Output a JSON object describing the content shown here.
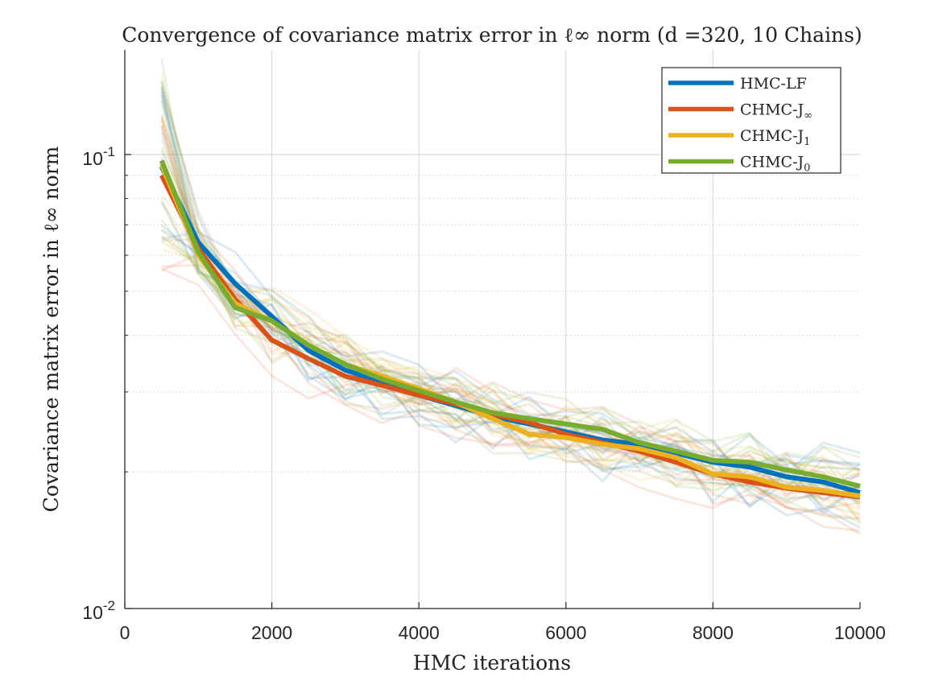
{
  "chart_data": {
    "type": "line",
    "title": "Convergence of covariance matrix error in ℓ∞ norm (d =320, 10 Chains)",
    "xlabel": "HMC iterations",
    "ylabel": "Covariance matrix error in ℓ∞ norm",
    "xlim": [
      0,
      10000
    ],
    "ylim": [
      0.01,
      0.17
    ],
    "yscale": "log",
    "grid": true,
    "legend_position": "top-right",
    "x_ticks": [
      0,
      2000,
      4000,
      6000,
      8000,
      10000
    ],
    "x_tick_labels": [
      "0",
      "2000",
      "4000",
      "6000",
      "8000",
      "10000"
    ],
    "y_ticks": [
      0.01,
      0.1
    ],
    "y_tick_labels": [
      {
        "base": "10",
        "exp": "-2"
      },
      {
        "base": "10",
        "exp": "-1"
      }
    ],
    "x": [
      500,
      1000,
      1500,
      2000,
      2500,
      3000,
      3500,
      4000,
      4500,
      5000,
      5500,
      6000,
      6500,
      7000,
      7500,
      8000,
      8500,
      9000,
      9500,
      10000
    ],
    "series": [
      {
        "name": "HMC-LF",
        "legend_base": "HMC-LF",
        "legend_sub": "",
        "color": "#0072BD",
        "values": [
          0.094,
          0.064,
          0.052,
          0.044,
          0.037,
          0.0335,
          0.0315,
          0.0295,
          0.028,
          0.0265,
          0.0255,
          0.0245,
          0.0235,
          0.023,
          0.022,
          0.021,
          0.0205,
          0.0195,
          0.019,
          0.018
        ]
      },
      {
        "name": "CHMC-J∞",
        "legend_base": "CHMC-J",
        "legend_sub": "∞",
        "color": "#D95319",
        "values": [
          0.09,
          0.062,
          0.048,
          0.039,
          0.0355,
          0.0325,
          0.031,
          0.0295,
          0.0282,
          0.0268,
          0.0257,
          0.0242,
          0.0232,
          0.0222,
          0.021,
          0.0198,
          0.019,
          0.0184,
          0.018,
          0.0176
        ]
      },
      {
        "name": "CHMC-J1",
        "legend_base": "CHMC-J",
        "legend_sub": "1",
        "color": "#EDB120",
        "values": [
          0.095,
          0.06,
          0.047,
          0.043,
          0.038,
          0.0345,
          0.0325,
          0.0305,
          0.0285,
          0.0262,
          0.0242,
          0.0238,
          0.023,
          0.0225,
          0.0215,
          0.0198,
          0.0195,
          0.0185,
          0.0182,
          0.0177
        ]
      },
      {
        "name": "CHMC-J0",
        "legend_base": "CHMC-J",
        "legend_sub": "0",
        "color": "#77AC30",
        "values": [
          0.097,
          0.061,
          0.046,
          0.043,
          0.038,
          0.0345,
          0.032,
          0.0302,
          0.0285,
          0.027,
          0.0262,
          0.0255,
          0.0248,
          0.0232,
          0.0222,
          0.0212,
          0.021,
          0.0202,
          0.0195,
          0.0186
        ]
      }
    ]
  }
}
